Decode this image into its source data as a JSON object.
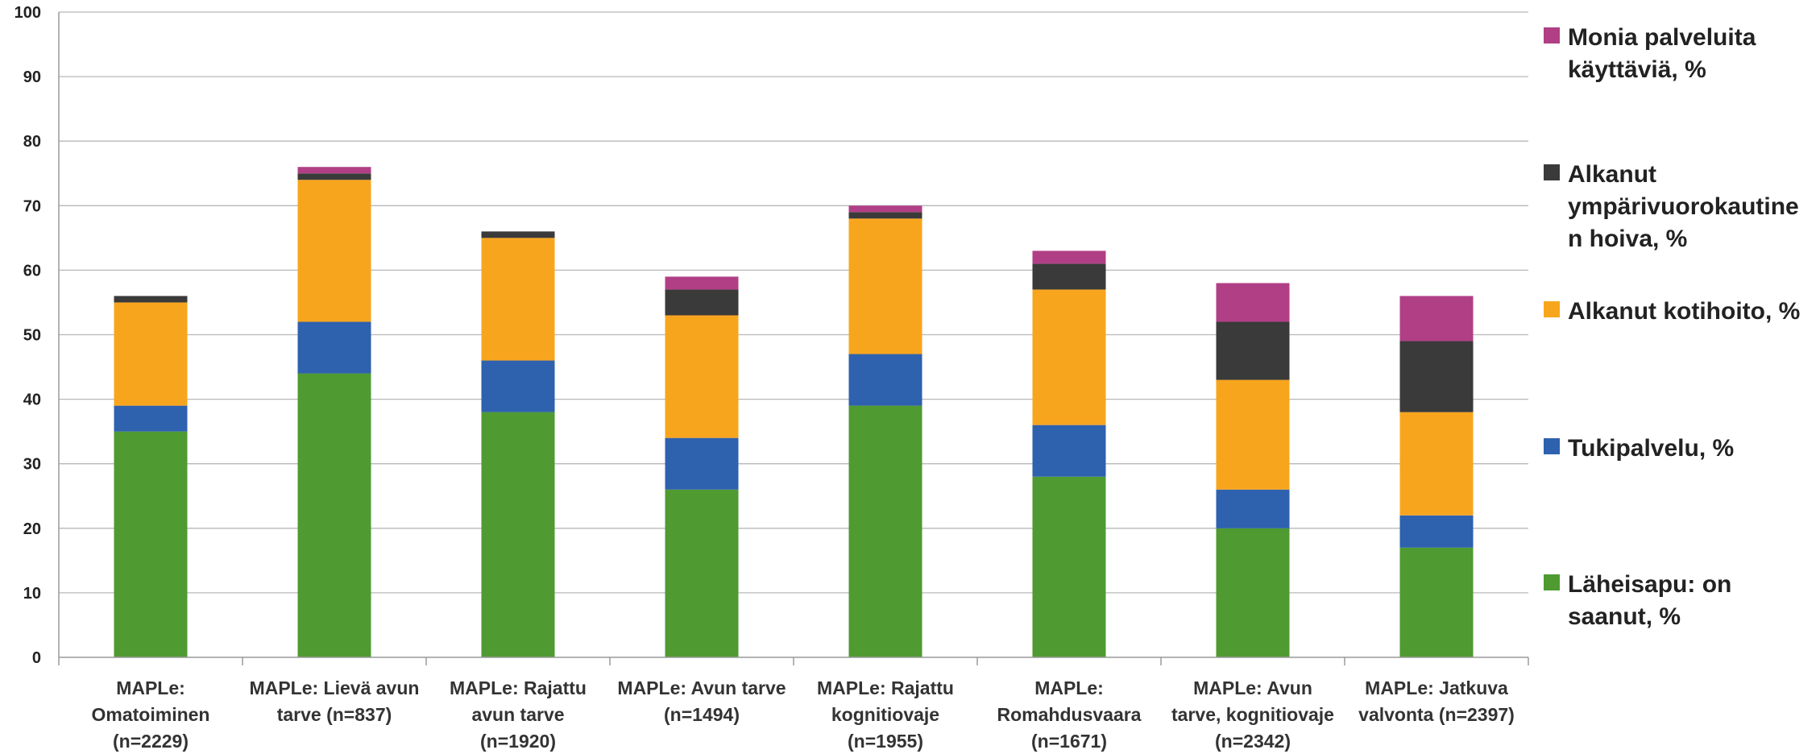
{
  "chart_data": {
    "type": "bar",
    "stacked": true,
    "categories": [
      [
        "MAPLe:",
        "Omatoiminen",
        "(n=2229)"
      ],
      [
        "MAPLe: Lievä avun",
        "tarve (n=837)"
      ],
      [
        "MAPLe: Rajattu",
        "avun tarve",
        "(n=1920)"
      ],
      [
        "MAPLe: Avun tarve",
        "(n=1494)"
      ],
      [
        "MAPLe: Rajattu",
        "kognitiovaje",
        "(n=1955)"
      ],
      [
        "MAPLe:",
        "Romahdusvaara",
        "(n=1671)"
      ],
      [
        "MAPLe: Avun",
        "tarve, kognitiovaje",
        "(n=2342)"
      ],
      [
        "MAPLe: Jatkuva",
        "valvonta (n=2397)"
      ]
    ],
    "series": [
      {
        "name": [
          "Läheisapu: on",
          "saanut, %"
        ],
        "color": "#4f9a31",
        "values": [
          35,
          44,
          38,
          26,
          39,
          28,
          20,
          17
        ]
      },
      {
        "name": [
          "Tukipalvelu, %"
        ],
        "color": "#2e61ae",
        "values": [
          4,
          8,
          8,
          8,
          8,
          8,
          6,
          5
        ]
      },
      {
        "name": [
          "Alkanut kotihoito, %"
        ],
        "color": "#f8a51e",
        "values": [
          16,
          22,
          19,
          19,
          21,
          21,
          17,
          16
        ]
      },
      {
        "name": [
          "Alkanut",
          "ympärivuorokautine",
          "n hoiva, %"
        ],
        "color": "#3a3a3a",
        "values": [
          1,
          1,
          1,
          4,
          1,
          4,
          9,
          11
        ]
      },
      {
        "name": [
          "Monia palveluita",
          "käyttäviä, %"
        ],
        "color": "#b13f86",
        "values": [
          0,
          1,
          0,
          2,
          1,
          2,
          6,
          7
        ]
      }
    ],
    "ylim": [
      0,
      100
    ],
    "yticks": [
      0,
      10,
      20,
      30,
      40,
      50,
      60,
      70,
      80,
      90,
      100
    ],
    "grid": true,
    "legend": "right"
  }
}
